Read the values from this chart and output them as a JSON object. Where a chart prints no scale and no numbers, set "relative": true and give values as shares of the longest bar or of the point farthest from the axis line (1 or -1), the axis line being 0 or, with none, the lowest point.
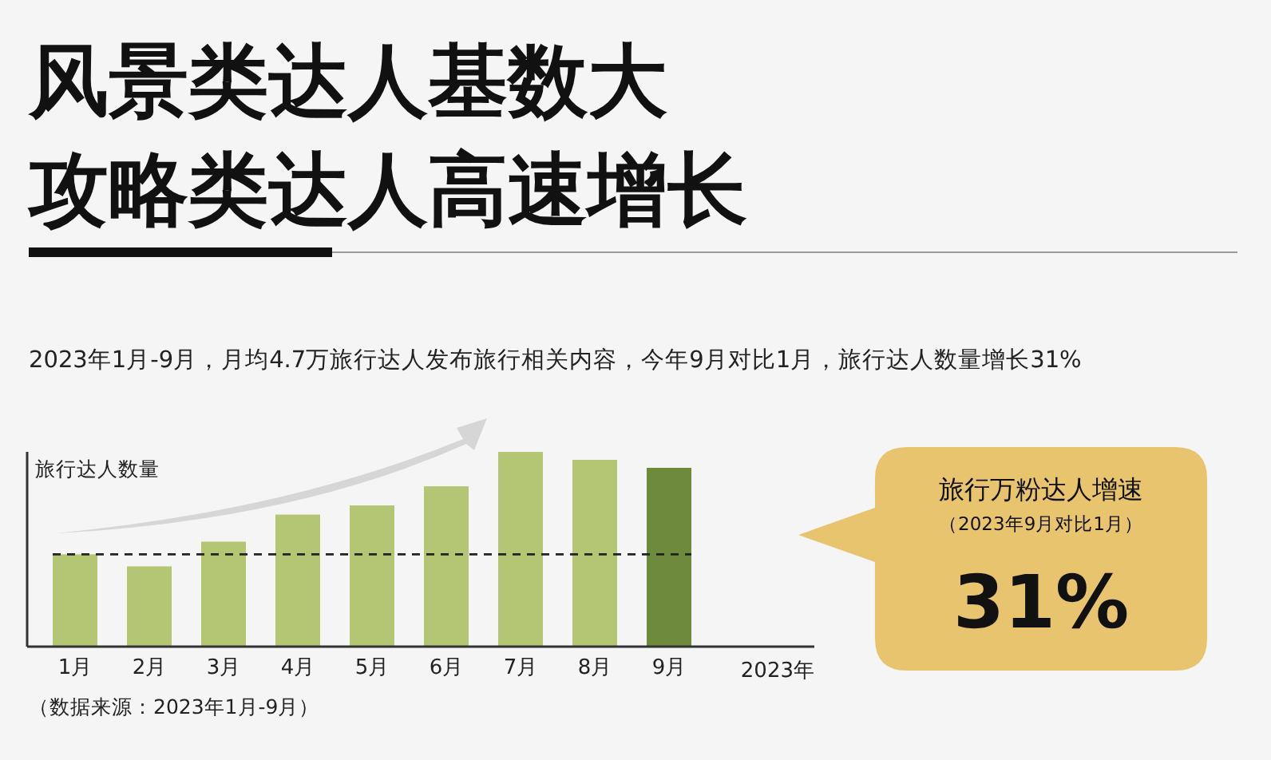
{
  "chart_data": [
    {
      "type": "bar",
      "title": "风景类达人基数大攻略类达人高速增长",
      "subtitle": "2023年1月-9月，月均4.7万旅行达人发布旅行相关内容，今年9月对比1月，旅行达人数量增长31%",
      "ylabel": "旅行达人数量",
      "xlabel": "2023年",
      "categories": [
        "1月",
        "2月",
        "3月",
        "4月",
        "5月",
        "6月",
        "7月",
        "8月",
        "9月"
      ],
      "relative": true,
      "values": [
        0.474,
        0.412,
        0.539,
        0.678,
        0.725,
        0.823,
        1,
        0.959,
        0.918
      ],
      "colors": [
        "#b4c674",
        "#b4c674",
        "#b4c674",
        "#b4c674",
        "#b4c674",
        "#b4c674",
        "#b4c674",
        "#b4c674",
        "#6e8a3c"
      ],
      "ref_lines": [
        {
          "axis": "y",
          "value": 0.474,
          "color": "#222222",
          "line_style": "dashed"
        }
      ],
      "annotations": [
        "（数据来源：2023年1月-9月）"
      ]
    },
    {
      "type": "other",
      "annotations": [
        "旅行万粉达人增速",
        "（2023年9月对比1月）",
        "31%"
      ]
    }
  ]
}
